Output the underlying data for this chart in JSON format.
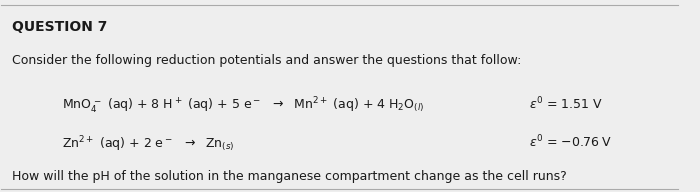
{
  "title": "QUESTION 7",
  "intro": "Consider the following reduction potentials and answer the questions that follow:",
  "question": "How will the pH of the solution in the manganese compartment change as the cell runs?",
  "bg_color": "#eeeeee",
  "text_color": "#1a1a1a",
  "title_fontsize": 10,
  "body_fontsize": 9,
  "eq_fontsize": 9
}
